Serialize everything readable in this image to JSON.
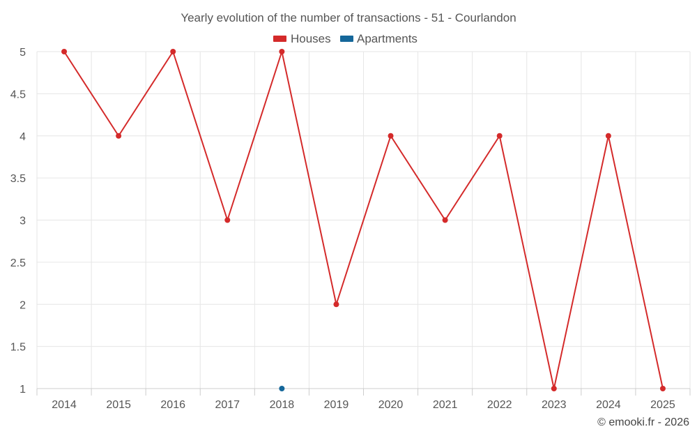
{
  "chart_data": {
    "type": "line",
    "title": "Yearly evolution of the number of transactions - 51 - Courlandon",
    "categories": [
      "2014",
      "2015",
      "2016",
      "2017",
      "2018",
      "2019",
      "2020",
      "2021",
      "2022",
      "2023",
      "2024",
      "2025"
    ],
    "ylim": [
      1,
      5
    ],
    "yticks": [
      "1",
      "1.5",
      "2",
      "2.5",
      "3",
      "3.5",
      "4",
      "4.5",
      "5"
    ],
    "grid": true,
    "legend_position": "top-center",
    "series": [
      {
        "name": "Houses",
        "color": "#d42a2a",
        "values": [
          5,
          4,
          5,
          3,
          5,
          2,
          4,
          3,
          4,
          1,
          4,
          1
        ]
      },
      {
        "name": "Apartments",
        "color": "#15679a",
        "values": [
          null,
          null,
          null,
          null,
          1,
          null,
          null,
          null,
          null,
          null,
          null,
          null
        ]
      }
    ]
  },
  "credit": "© emooki.fr - 2026"
}
